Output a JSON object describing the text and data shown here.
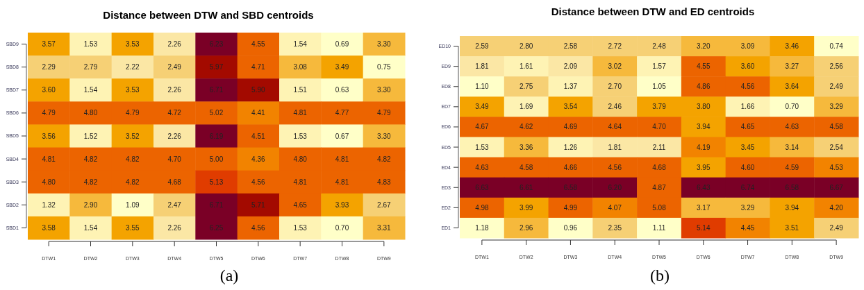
{
  "chart_data": [
    {
      "type": "heatmap",
      "title": "Distance between DTW and SBD centroids",
      "annotations": [
        "(a)"
      ],
      "data_labels": true,
      "categories": [
        "DTW1",
        "DTW2",
        "DTW3",
        "DTW4",
        "DTW5",
        "DTW6",
        "DTW7",
        "DTW8",
        "DTW9"
      ],
      "y_categories": [
        "SBD9",
        "SBD8",
        "SBD7",
        "SBD6",
        "SBD5",
        "SBD4",
        "SBD3",
        "SBD2",
        "SBD1"
      ],
      "cells": [
        [
          3.57,
          1.53,
          3.53,
          2.26,
          6.23,
          4.55,
          1.54,
          0.69,
          3.3
        ],
        [
          2.29,
          2.79,
          2.22,
          2.49,
          5.97,
          4.71,
          3.08,
          3.49,
          0.75
        ],
        [
          3.6,
          1.54,
          3.53,
          2.26,
          6.71,
          5.9,
          1.51,
          0.63,
          3.3
        ],
        [
          4.79,
          4.8,
          4.79,
          4.72,
          5.02,
          4.41,
          4.81,
          4.77,
          4.79
        ],
        [
          3.56,
          1.52,
          3.52,
          2.26,
          6.19,
          4.51,
          1.53,
          0.67,
          3.3
        ],
        [
          4.81,
          4.82,
          4.82,
          4.7,
          5.0,
          4.36,
          4.8,
          4.81,
          4.82
        ],
        [
          4.8,
          4.82,
          4.82,
          4.68,
          5.13,
          4.56,
          4.81,
          4.81,
          4.83
        ],
        [
          1.32,
          2.9,
          1.09,
          2.47,
          6.71,
          5.71,
          4.65,
          3.93,
          2.67
        ],
        [
          3.58,
          1.54,
          3.55,
          2.26,
          6.25,
          4.56,
          1.53,
          0.7,
          3.31
        ]
      ],
      "cell_labels": [
        [
          "3.57",
          "1.53",
          "3.53",
          "2.26",
          "6.23",
          "4.55",
          "1.54",
          "0.69",
          "3.30"
        ],
        [
          "2.29",
          "2.79",
          "2.22",
          "2.49",
          "5.97",
          "4.71",
          "3.08",
          "3.49",
          "0.75"
        ],
        [
          "3.60",
          "1.54",
          "3.53",
          "2.26",
          "6.71",
          "5.90",
          "1.51",
          "0.63",
          "3.30"
        ],
        [
          "4.79",
          "4.80",
          "4.79",
          "4.72",
          "5.02",
          "4.41",
          "4.81",
          "4.77",
          "4.79"
        ],
        [
          "3.56",
          "1.52",
          "3.52",
          "2.26",
          "6.19",
          "4.51",
          "1.53",
          "0.67",
          "3.30"
        ],
        [
          "4.81",
          "4.82",
          "4.82",
          "4.70",
          "5.00",
          "4.36",
          "4.80",
          "4.81",
          "4.82"
        ],
        [
          "4.80",
          "4.82",
          "4.82",
          "4.68",
          "5.13",
          "4.56",
          "4.81",
          "4.81",
          "4.83"
        ],
        [
          "1.32",
          "2.90",
          "1.09",
          "2.47",
          "6.71",
          "5.71",
          "4.65",
          "3.93",
          "2.67"
        ],
        [
          "3.58",
          "1.54",
          "3.55",
          "2.26",
          "6.25",
          "4.56",
          "1.53",
          "0.70",
          "3.31"
        ]
      ]
    },
    {
      "type": "heatmap",
      "title": "Distance between DTW and ED centroids",
      "annotations": [
        "(b)"
      ],
      "data_labels": true,
      "categories": [
        "DTW1",
        "DTW2",
        "DTW3",
        "DTW4",
        "DTW5",
        "DTW6",
        "DTW7",
        "DTW8",
        "DTW9"
      ],
      "y_categories": [
        "ED10",
        "ED9",
        "ED8",
        "ED7",
        "ED6",
        "ED5",
        "ED4",
        "ED3",
        "ED2",
        "ED1"
      ],
      "cells": [
        [
          2.59,
          2.8,
          2.58,
          2.72,
          2.48,
          3.2,
          3.09,
          3.46,
          0.74
        ],
        [
          1.81,
          1.61,
          2.09,
          3.02,
          1.57,
          4.55,
          3.6,
          3.27,
          2.56
        ],
        [
          1.1,
          2.75,
          1.37,
          2.7,
          1.05,
          4.86,
          4.56,
          3.64,
          2.49
        ],
        [
          3.49,
          1.69,
          3.54,
          2.46,
          3.79,
          3.8,
          1.66,
          0.7,
          3.29
        ],
        [
          4.67,
          4.62,
          4.69,
          4.64,
          4.7,
          3.94,
          4.65,
          4.63,
          4.58
        ],
        [
          1.53,
          3.36,
          1.26,
          1.81,
          2.11,
          4.19,
          3.45,
          3.14,
          2.54
        ],
        [
          4.63,
          4.58,
          4.66,
          4.56,
          4.68,
          3.95,
          4.6,
          4.59,
          4.53
        ],
        [
          6.63,
          6.61,
          6.58,
          6.2,
          4.87,
          6.43,
          6.74,
          6.58,
          6.67
        ],
        [
          4.98,
          3.99,
          4.99,
          4.07,
          5.08,
          3.17,
          3.29,
          3.94,
          4.2
        ],
        [
          1.18,
          2.96,
          0.96,
          2.35,
          1.11,
          5.14,
          4.45,
          3.51,
          2.49
        ]
      ],
      "cell_labels": [
        [
          "2.59",
          "2.80",
          "2.58",
          "2.72",
          "2.48",
          "3.20",
          "3.09",
          "3.46",
          "0.74"
        ],
        [
          "1.81",
          "1.61",
          "2.09",
          "3.02",
          "1.57",
          "4.55",
          "3.60",
          "3.27",
          "2.56"
        ],
        [
          "1.10",
          "2.75",
          "1.37",
          "2.70",
          "1.05",
          "4.86",
          "4.56",
          "3.64",
          "2.49"
        ],
        [
          "3.49",
          "1.69",
          "3.54",
          "2.46",
          "3.79",
          "3.80",
          "1.66",
          "0.70",
          "3.29"
        ],
        [
          "4.67",
          "4.62",
          "4.69",
          "4.64",
          "4.70",
          "3.94",
          "4.65",
          "4.63",
          "4.58"
        ],
        [
          "1.53",
          "3.36",
          "1.26",
          "1.81",
          "2.11",
          "4.19",
          "3.45",
          "3.14",
          "2.54"
        ],
        [
          "4.63",
          "4.58",
          "4.66",
          "4.56",
          "4.68",
          "3.95",
          "4.60",
          "4.59",
          "4.53"
        ],
        [
          "6.63",
          "6.61",
          "6.58",
          "6.20",
          "4.87",
          "6.43",
          "6.74",
          "6.58",
          "6.67"
        ],
        [
          "4.98",
          "3.99",
          "4.99",
          "4.07",
          "5.08",
          "3.17",
          "3.29",
          "3.94",
          "4.20"
        ],
        [
          "1.18",
          "2.96",
          "0.96",
          "2.35",
          "1.11",
          "5.14",
          "4.45",
          "3.51",
          "2.49"
        ]
      ]
    }
  ]
}
